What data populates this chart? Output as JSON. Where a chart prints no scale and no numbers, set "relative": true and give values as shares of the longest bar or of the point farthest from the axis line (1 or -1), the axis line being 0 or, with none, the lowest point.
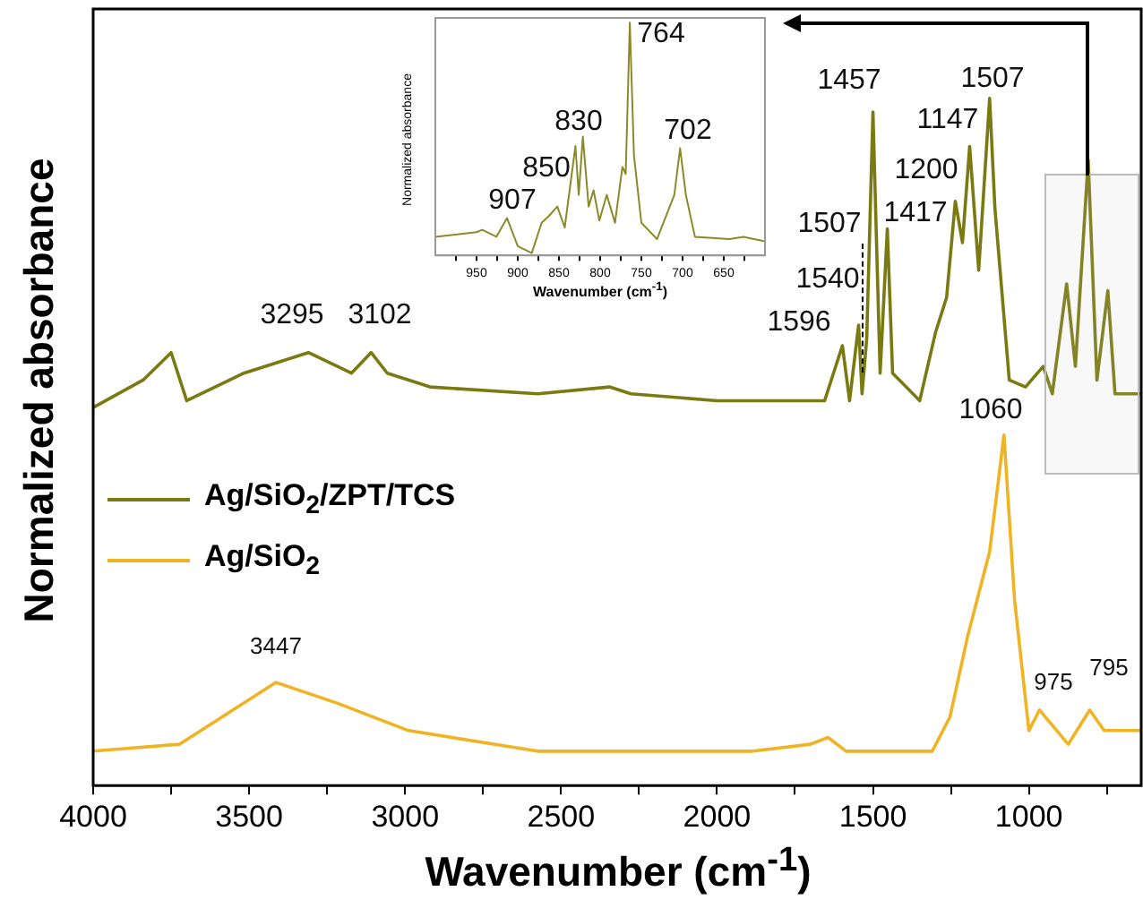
{
  "chart_data": [
    {
      "type": "line",
      "relative": true,
      "xlabel": "Wavenumber (cm$^{-1}$)",
      "ylabel": "Normalized absorbance",
      "xlim": [
        4000,
        640
      ],
      "xticks": [
        4000,
        {
          "value": 3750,
          "label": null
        },
        3500,
        {
          "value": 3250,
          "label": null
        },
        3000,
        {
          "value": 2750,
          "label": null
        },
        2500,
        {
          "value": 2250,
          "label": null
        },
        2000,
        {
          "value": 1750,
          "label": null
        },
        1500,
        {
          "value": 1250,
          "label": null
        },
        1000,
        {
          "value": 750,
          "label": null
        }
      ],
      "legend": "left",
      "marker": "none",
      "line_style": "solid",
      "grid": false,
      "series": [
        {
          "name": "Ag/SiO$_{2}$/ZPT/TCS",
          "color": "#7a7a12",
          "x": [
            4000,
            3840,
            3750,
            3700,
            3517,
            3310,
            3172,
            3109,
            3057,
            2920,
            2575,
            2345,
            2276,
            2000,
            1770,
            1655,
            1598,
            1575,
            1546,
            1535,
            1520,
            1500,
            1477,
            1454,
            1437,
            1350,
            1299,
            1264,
            1236,
            1213,
            1190,
            1161,
            1126,
            1109,
            1063,
            1011,
            954,
            925,
            879,
            851,
            810,
            782,
            747,
            724,
            661,
            640
          ],
          "values": [
            0.55,
            0.59,
            0.63,
            0.56,
            0.6,
            0.63,
            0.6,
            0.63,
            0.6,
            0.58,
            0.57,
            0.58,
            0.57,
            0.56,
            0.56,
            0.56,
            0.64,
            0.56,
            0.67,
            0.57,
            0.65,
            0.98,
            0.6,
            0.81,
            0.6,
            0.56,
            0.66,
            0.71,
            0.85,
            0.79,
            0.93,
            0.75,
            1.0,
            0.84,
            0.59,
            0.58,
            0.61,
            0.57,
            0.73,
            0.61,
            0.91,
            0.59,
            0.72,
            0.57,
            0.57,
            0.57
          ]
        },
        {
          "name": "Ag/SiO$_{2}$",
          "color": "#f0b323",
          "x": [
            4000,
            3724,
            3586,
            3414,
            3218,
            2989,
            2575,
            1885,
            1701,
            1644,
            1586,
            1310,
            1253,
            1195,
            1126,
            1080,
            1046,
            1000,
            966,
            874,
            805,
            759,
            640
          ],
          "values": [
            0.05,
            0.06,
            0.1,
            0.15,
            0.12,
            0.08,
            0.05,
            0.05,
            0.06,
            0.07,
            0.05,
            0.05,
            0.1,
            0.22,
            0.34,
            0.51,
            0.27,
            0.08,
            0.11,
            0.06,
            0.11,
            0.08,
            0.08
          ]
        }
      ],
      "annotations": [
        "3295",
        "3102",
        "1596",
        "1540",
        "1507",
        "1457",
        "1417",
        "1200",
        "1147",
        "1507",
        "1060",
        "3447",
        "975",
        "795"
      ]
    },
    {
      "type": "line",
      "relative": true,
      "xlabel": "Wavenumber (cm$^{-1}$)",
      "ylabel": "Normalized absorbance",
      "xlim": [
        1000,
        600
      ],
      "xticks": [
        {
          "value": 975,
          "label": null
        },
        950,
        {
          "value": 925,
          "label": null
        },
        900,
        {
          "value": 875,
          "label": null
        },
        850,
        {
          "value": 825,
          "label": null
        },
        800,
        {
          "value": 775,
          "label": null
        },
        750,
        {
          "value": 725,
          "label": null
        },
        700,
        {
          "value": 675,
          "label": null
        },
        650,
        {
          "value": 625,
          "label": null
        }
      ],
      "tick_labels": "x",
      "marker": "none",
      "line_style": "solid",
      "grid": false,
      "series": [
        {
          "color": "#8a8a2a",
          "x": [
            1000,
            950,
            943,
            926,
            913,
            900,
            883,
            871,
            862,
            852,
            843,
            830,
            826,
            821,
            814,
            808,
            801,
            792,
            782,
            773,
            769,
            764,
            759,
            750,
            731,
            710,
            703,
            696,
            685,
            643,
            626,
            600
          ],
          "values": [
            0.08,
            0.1,
            0.11,
            0.08,
            0.16,
            0.04,
            0.01,
            0.14,
            0.17,
            0.21,
            0.12,
            0.47,
            0.26,
            0.51,
            0.21,
            0.28,
            0.15,
            0.26,
            0.14,
            0.38,
            0.35,
            1.0,
            0.43,
            0.14,
            0.07,
            0.26,
            0.46,
            0.26,
            0.08,
            0.07,
            0.08,
            0.06
          ]
        }
      ],
      "annotations": [
        "907",
        "850",
        "830",
        "764",
        "702"
      ]
    }
  ]
}
